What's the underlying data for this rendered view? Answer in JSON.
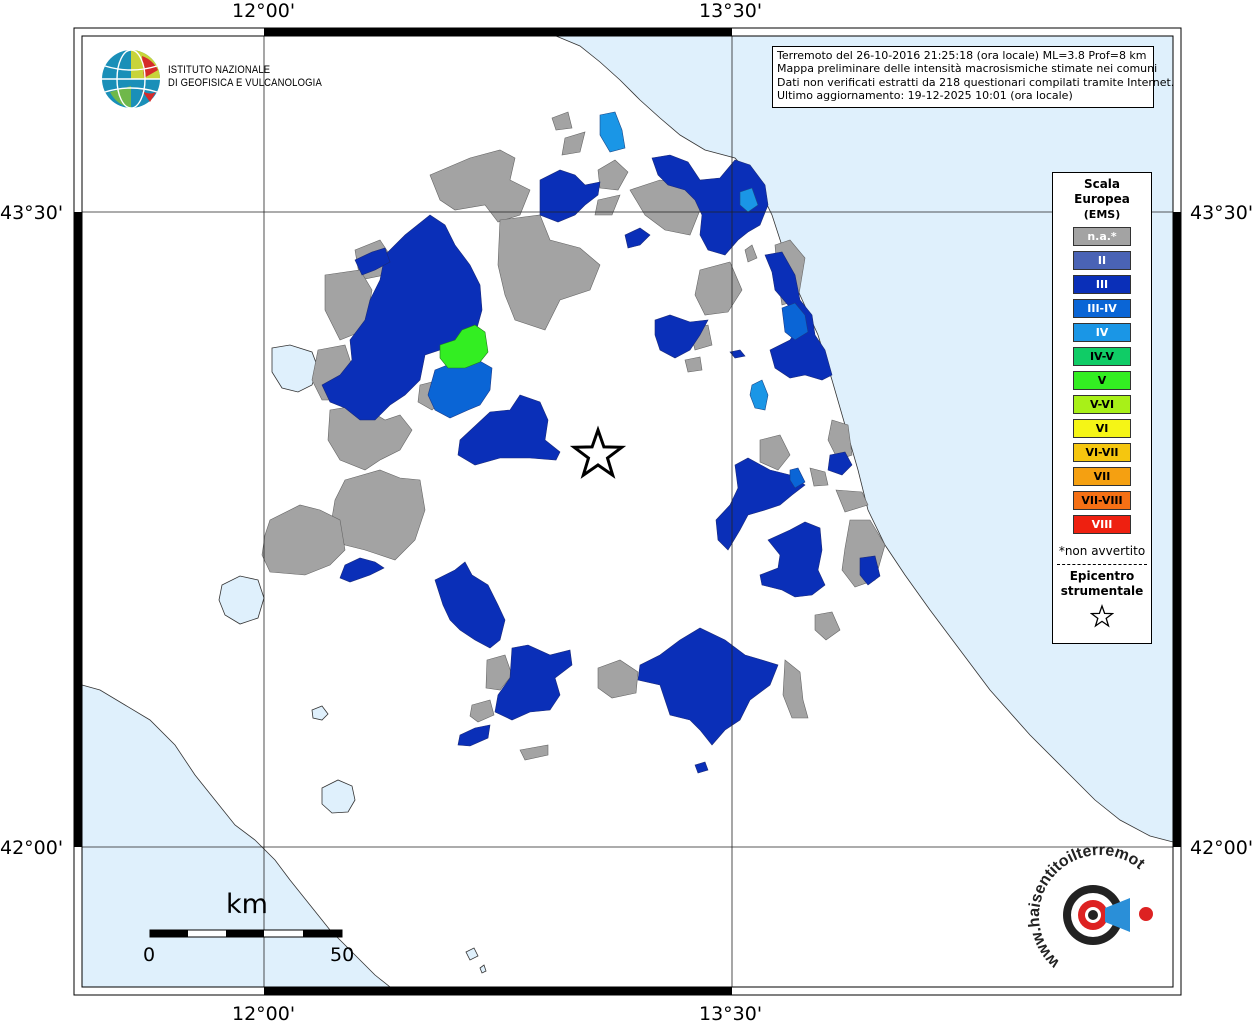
{
  "axes": {
    "lon_labels": [
      "12°00'",
      "13°30'"
    ],
    "lat_labels": [
      "43°30'",
      "42°00'"
    ]
  },
  "info": {
    "line1": "Terremoto del 26-10-2016 21:25:18 (ora locale) ML=3.8 Prof=8 km",
    "line2": "Mappa preliminare delle intensità macrosismiche stimate nei comuni",
    "line3": "Dati non verificati estratti da 218 questionari compilati tramite Internet.",
    "line4": "Ultimo aggiornamento: 19-12-2025 10:01 (ora locale)"
  },
  "legend": {
    "title1": "Scala",
    "title2": "Europea",
    "title3": "(EMS)",
    "classes": [
      {
        "label": "n.a.*",
        "color": "#a3a3a3",
        "text": "#ffffff"
      },
      {
        "label": "II",
        "color": "#4a63b5",
        "text": "#ffffff"
      },
      {
        "label": "III",
        "color": "#0a2fb8",
        "text": "#ffffff"
      },
      {
        "label": "III-IV",
        "color": "#0a65d6",
        "text": "#ffffff"
      },
      {
        "label": "IV",
        "color": "#1a96e6",
        "text": "#ffffff"
      },
      {
        "label": "IV-V",
        "color": "#10cc66",
        "text": "#000000"
      },
      {
        "label": "V",
        "color": "#33ee22",
        "text": "#000000"
      },
      {
        "label": "V-VI",
        "color": "#a8f018",
        "text": "#000000"
      },
      {
        "label": "VI",
        "color": "#f5f516",
        "text": "#000000"
      },
      {
        "label": "VI-VII",
        "color": "#f5c60f",
        "text": "#000000"
      },
      {
        "label": "VII",
        "color": "#f5a011",
        "text": "#000000"
      },
      {
        "label": "VII-VIII",
        "color": "#f57015",
        "text": "#000000"
      },
      {
        "label": "VIII",
        "color": "#ee2010",
        "text": "#ffffff"
      }
    ],
    "note": "*non avvertito",
    "epicenter_line1": "Epicentro",
    "epicenter_line2": "strumentale",
    "epicenter_icon": "star-outline-icon"
  },
  "logo_ingv": {
    "line1": "ISTITUTO NAZIONALE",
    "line2": "DI GEOFISICA E VULCANOLOGIA"
  },
  "logo_hsit": {
    "text": "www.haisentitoilterremoto.it"
  },
  "scalebar": {
    "unit": "km",
    "min_label": "0",
    "max_label": "50"
  },
  "colors": {
    "sea": "#dff0fc",
    "land": "#ffffff",
    "na": "#a3a3a3",
    "III": "#0a2fb8",
    "III-IV": "#0a65d6",
    "IV": "#1a96e6",
    "V": "#33ee22"
  }
}
